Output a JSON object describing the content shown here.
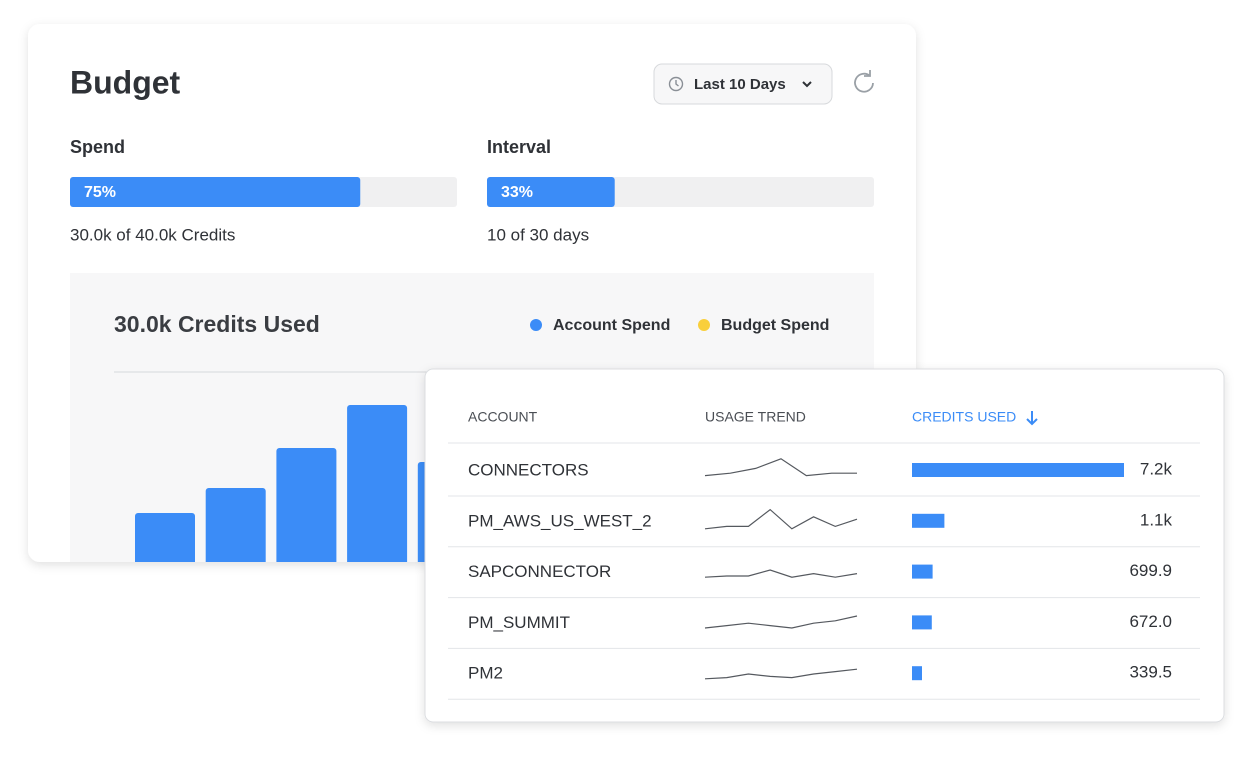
{
  "budget": {
    "title": "Budget",
    "range_button": "Last 10 Days",
    "spend": {
      "label": "Spend",
      "value": 75,
      "value_label": "75%",
      "detail": "30.0k of 40.0k Credits"
    },
    "interval": {
      "label": "Interval",
      "value": 33,
      "value_label": "33%",
      "detail": "10 of 30 days"
    },
    "chart": {
      "title": "30.0k Credits Used",
      "legend": [
        {
          "name": "Account Spend",
          "color": "#3b8cf7"
        },
        {
          "name": "Budget Spend",
          "color": "#f9cf3c"
        }
      ],
      "bars": [
        49,
        74,
        114,
        157,
        100
      ],
      "bar_color": "#3b8cf7"
    }
  },
  "table": {
    "headers": [
      "ACCOUNT",
      "USAGE TREND",
      "CREDITS USED"
    ],
    "rows": [
      {
        "account": "CONNECTORS",
        "trend": [
          1,
          2,
          4,
          8,
          1,
          2,
          2
        ],
        "credits": 7200,
        "credits_label": "7.2k"
      },
      {
        "account": "PM_AWS_US_WEST_2",
        "trend": [
          0,
          1,
          1,
          8,
          0,
          5,
          1,
          4
        ],
        "credits": 1100,
        "credits_label": "1.1k"
      },
      {
        "account": "SAPCONNECTOR",
        "trend": [
          1,
          1.5,
          1.5,
          4,
          1,
          2.5,
          1,
          2.5
        ],
        "credits": 699.9,
        "credits_label": "699.9"
      },
      {
        "account": "PM_SUMMIT",
        "trend": [
          1,
          2,
          3,
          2,
          1,
          3,
          4,
          6
        ],
        "credits": 672.0,
        "credits_label": "672.0"
      },
      {
        "account": "PM2",
        "trend": [
          1,
          1.5,
          3,
          2,
          1.5,
          3,
          4,
          5
        ],
        "credits": 339.5,
        "credits_label": "339.5"
      }
    ],
    "bar_color": "#3b8cf7"
  }
}
